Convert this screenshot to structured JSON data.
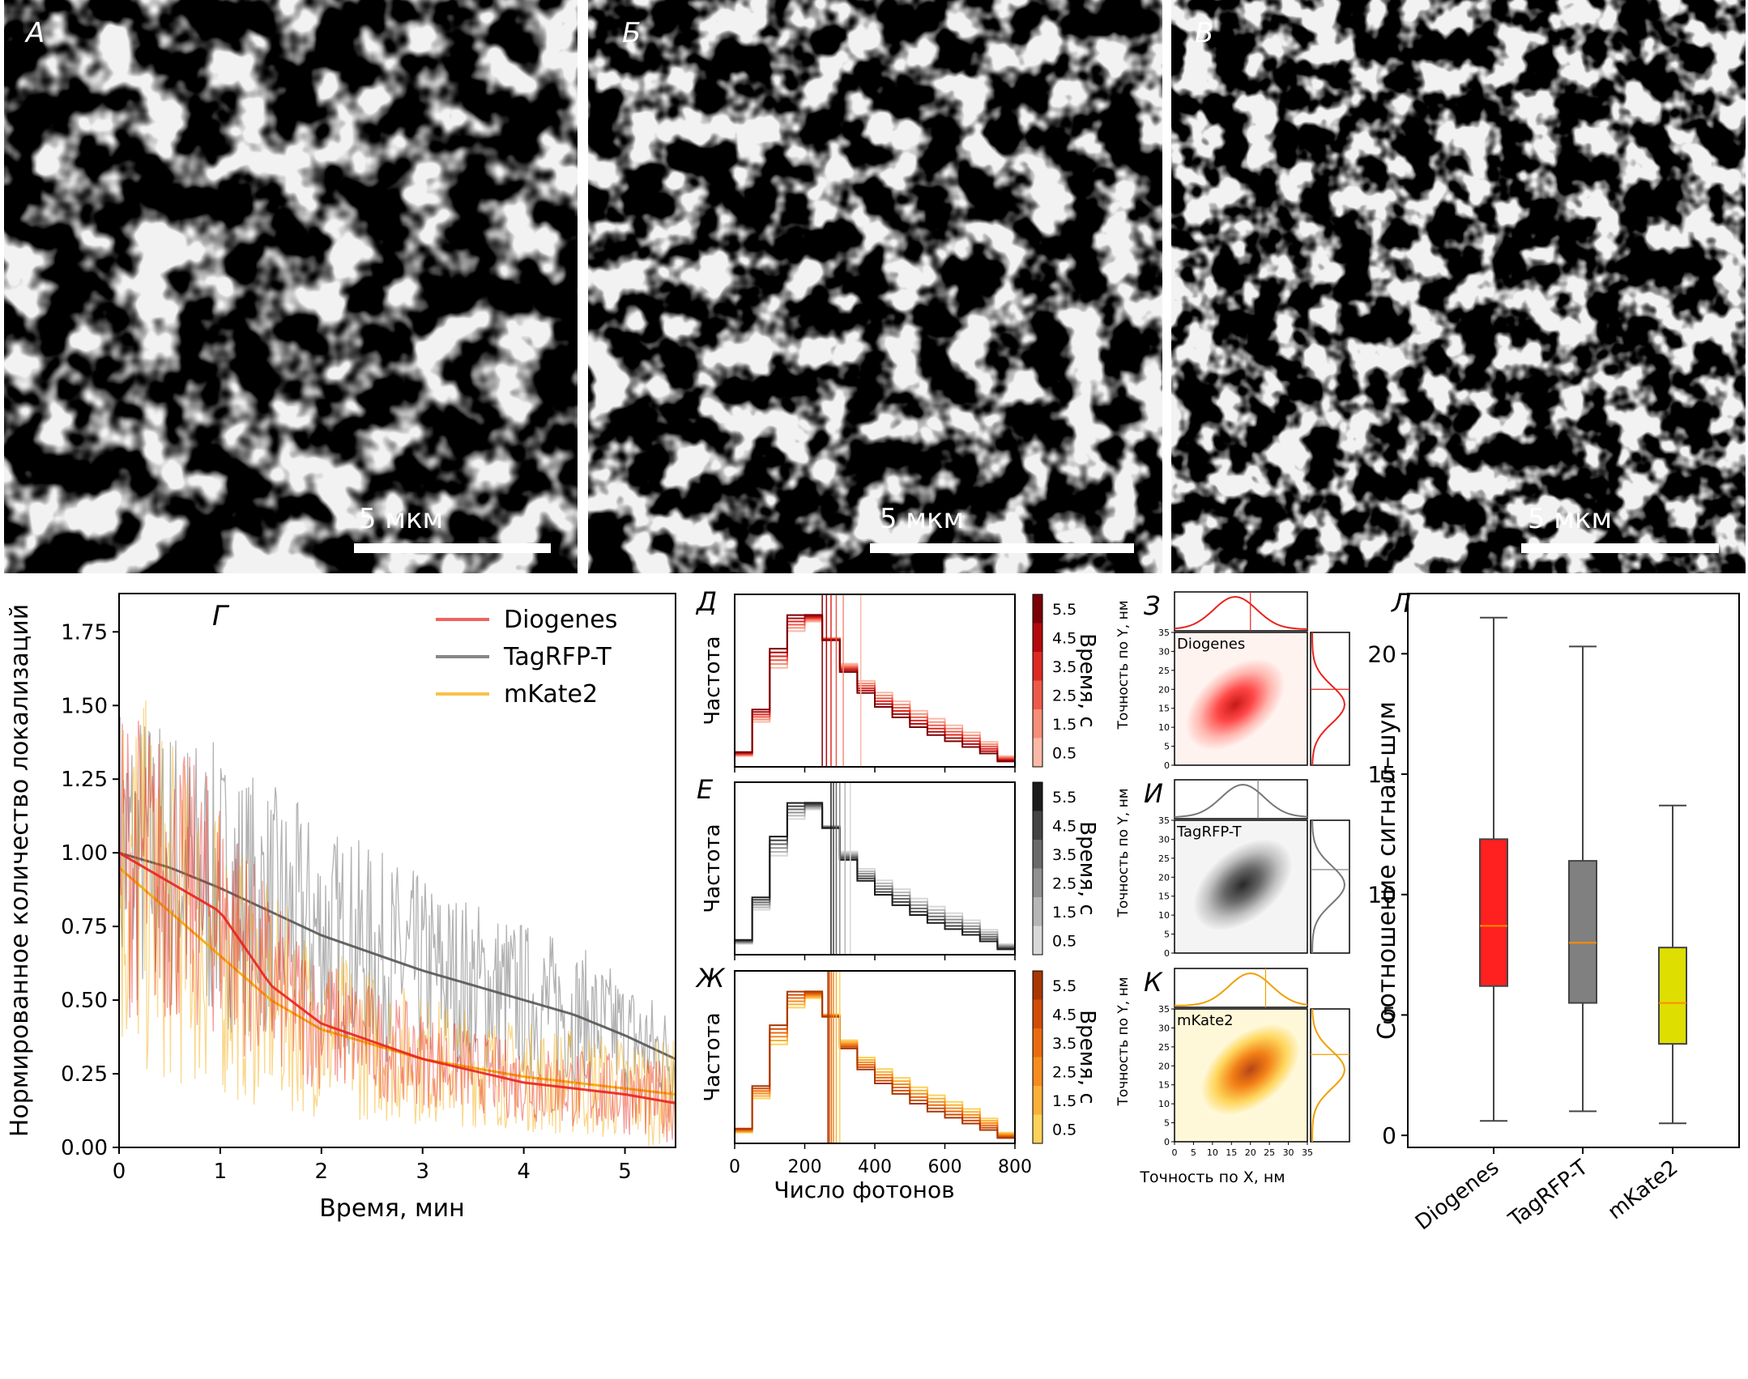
{
  "micrographs": [
    {
      "label": "А",
      "scale_text": "5 мкм"
    },
    {
      "label": "Б",
      "scale_text": "5 мкм"
    },
    {
      "label": "В",
      "scale_text": "5 мкм"
    }
  ],
  "colors": {
    "diogenes": "#e8231e",
    "tagrfp": "#555555",
    "mkate": "#f5a800"
  },
  "chart_data": [
    {
      "type": "line",
      "panel": "Г",
      "xlabel": "Время, мин",
      "ylabel": "Нормированное количество локализаций",
      "xlim": [
        0,
        5.5
      ],
      "ylim": [
        0,
        1.88
      ],
      "xticks": [
        "0",
        "1",
        "2",
        "3",
        "4",
        "5"
      ],
      "yticks": [
        "0.00",
        "0.25",
        "0.50",
        "0.75",
        "1.00",
        "1.25",
        "1.50",
        "1.75"
      ],
      "legend_position": "top-right",
      "series": [
        {
          "name": "Diogenes",
          "x": [
            0,
            0.5,
            1,
            1.5,
            2,
            2.5,
            3,
            3.5,
            4,
            4.5,
            5,
            5.5
          ],
          "values": [
            1.0,
            0.9,
            0.8,
            0.55,
            0.42,
            0.36,
            0.3,
            0.26,
            0.22,
            0.2,
            0.18,
            0.15
          ]
        },
        {
          "name": "TagRFP-T",
          "x": [
            0,
            0.5,
            1,
            1.5,
            2,
            2.5,
            3,
            3.5,
            4,
            4.5,
            5,
            5.5
          ],
          "values": [
            1.0,
            0.95,
            0.88,
            0.8,
            0.72,
            0.66,
            0.6,
            0.55,
            0.5,
            0.45,
            0.38,
            0.3
          ]
        },
        {
          "name": "mKate2",
          "x": [
            0,
            0.5,
            1,
            1.5,
            2,
            2.5,
            3,
            3.5,
            4,
            4.5,
            5,
            5.5
          ],
          "values": [
            0.95,
            0.8,
            0.65,
            0.5,
            0.4,
            0.35,
            0.3,
            0.27,
            0.24,
            0.22,
            0.2,
            0.18
          ]
        }
      ]
    },
    {
      "type": "histogram",
      "panels": [
        "Д",
        "Е",
        "Ж"
      ],
      "xlabel": "Число фотонов",
      "ylabel": "Частота",
      "xlim": [
        0,
        800
      ],
      "xticks": [
        "0",
        "200",
        "400",
        "600",
        "800"
      ],
      "colorbar_label": "Время, с",
      "colorbar_ticks": [
        "0.5",
        "1.5",
        "2.5",
        "3.5",
        "4.5",
        "5.5"
      ],
      "bin_edges": [
        0,
        50,
        100,
        150,
        200,
        250,
        300,
        350,
        400,
        450,
        500,
        550,
        600,
        650,
        700,
        750,
        800
      ],
      "base_distribution": [
        0.08,
        0.32,
        0.68,
        0.9,
        0.93,
        0.8,
        0.62,
        0.5,
        0.42,
        0.36,
        0.3,
        0.25,
        0.21,
        0.17,
        0.12,
        0.05
      ],
      "time_points": [
        0.5,
        1.5,
        2.5,
        3.5,
        4.5,
        5.5
      ],
      "median_lines": {
        "Diogenes": [
          360,
          310,
          290,
          275,
          262,
          250
        ],
        "TagRFP-T": [
          330,
          315,
          300,
          290,
          282,
          275
        ],
        "mKate2": [
          300,
          290,
          282,
          276,
          270,
          266
        ]
      }
    },
    {
      "type": "heatmap",
      "panels": [
        "З",
        "И",
        "К"
      ],
      "series_names": [
        "Diogenes",
        "TagRFP-T",
        "mKate2"
      ],
      "xlabel": "Точность по X, нм",
      "ylabel": "Точность по Y, нм",
      "xlim": [
        0,
        35
      ],
      "ylim": [
        0,
        35
      ],
      "xticks": [
        "0",
        "5",
        "10",
        "15",
        "20",
        "25",
        "30",
        "35"
      ],
      "yticks": [
        "0",
        "5",
        "10",
        "15",
        "20",
        "25",
        "30",
        "35"
      ],
      "centers": [
        [
          16,
          16
        ],
        [
          18,
          18
        ],
        [
          20,
          19
        ]
      ]
    },
    {
      "type": "box",
      "panel": "Л",
      "ylabel": "Соотношение сигнал–шум",
      "ylim": [
        -0.5,
        22.5
      ],
      "yticks": [
        "0",
        "5",
        "10",
        "15",
        "20"
      ],
      "categories": [
        "Diogenes",
        "TagRFP-T",
        "mKate2"
      ],
      "boxes": [
        {
          "min": 0.6,
          "q1": 6.2,
          "median": 8.7,
          "q3": 12.3,
          "max": 21.5,
          "color": "#ff2020"
        },
        {
          "min": 1.0,
          "q1": 5.5,
          "median": 8.0,
          "q3": 11.4,
          "max": 20.3,
          "color": "#808080"
        },
        {
          "min": 0.5,
          "q1": 3.8,
          "median": 5.5,
          "q3": 7.8,
          "max": 13.7,
          "color": "#dede00"
        }
      ]
    }
  ]
}
